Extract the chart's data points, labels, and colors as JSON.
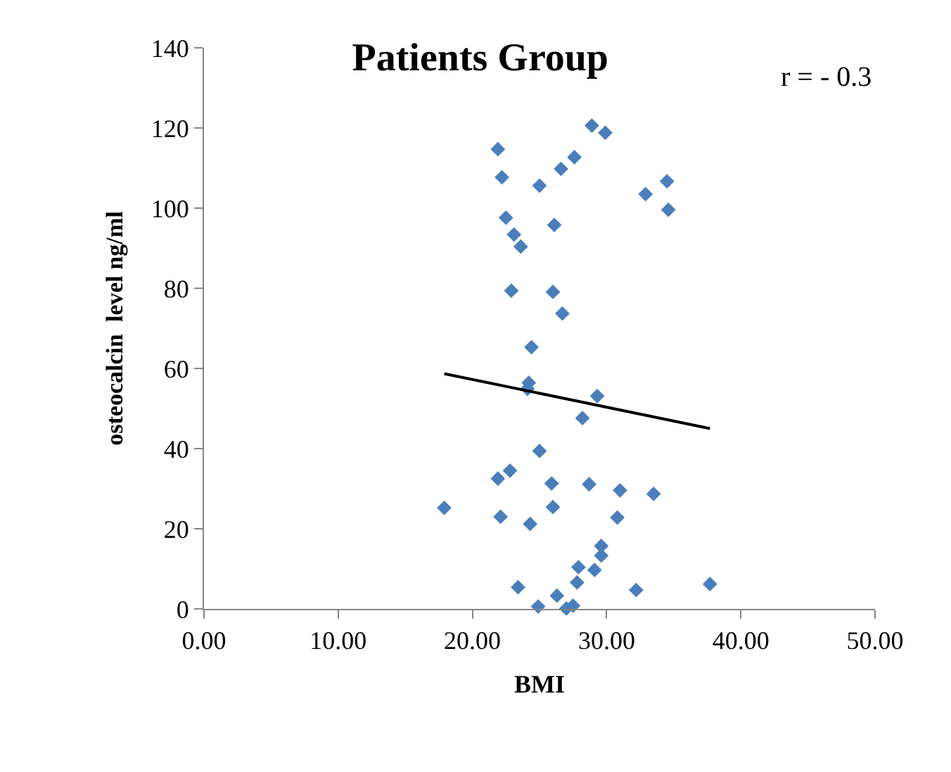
{
  "chart_data": {
    "type": "scatter",
    "title": "Patients Group",
    "xlabel": "BMI",
    "ylabel": "osteocalcin  level ng/ml",
    "annotations": [
      "r = - 0.3"
    ],
    "xlim": [
      0,
      50
    ],
    "xticks": [
      {
        "value": 0,
        "label": "0.00"
      },
      {
        "value": 10,
        "label": "10.00"
      },
      {
        "value": 20,
        "label": "20.00"
      },
      {
        "value": 30,
        "label": "30.00"
      },
      {
        "value": 40,
        "label": "40.00"
      },
      {
        "value": 50,
        "label": "50.00"
      }
    ],
    "ylim": [
      0,
      140
    ],
    "yticks": [
      0,
      20,
      40,
      60,
      80,
      100,
      120,
      140
    ],
    "marker": "diamond",
    "series": [
      {
        "color": "#4a7ebb",
        "x": [
          28.9,
          29.9,
          21.9,
          27.6,
          26.6,
          22.2,
          25.0,
          34.5,
          32.9,
          34.6,
          22.5,
          23.1,
          26.1,
          23.6,
          22.9,
          26.0,
          26.7,
          24.4,
          24.2,
          24.1,
          29.3,
          28.2,
          25.0,
          22.8,
          21.9,
          25.9,
          28.7,
          31.0,
          33.5,
          17.9,
          22.1,
          26.0,
          24.3,
          30.8,
          29.6,
          29.6,
          27.9,
          29.1,
          27.8,
          23.4,
          32.2,
          37.7,
          24.9,
          26.3,
          27.0,
          27.5
        ],
        "values": [
          120.6,
          118.8,
          114.7,
          112.7,
          109.8,
          107.7,
          105.6,
          106.7,
          103.5,
          99.6,
          97.6,
          93.4,
          95.8,
          90.4,
          79.4,
          79.1,
          73.7,
          65.3,
          56.4,
          54.9,
          53.1,
          47.6,
          39.4,
          34.5,
          32.5,
          31.3,
          31.1,
          29.6,
          28.7,
          25.2,
          23.0,
          25.4,
          21.2,
          22.8,
          15.7,
          13.3,
          10.4,
          9.7,
          6.6,
          5.4,
          4.7,
          6.2,
          0.6,
          3.3,
          0.1,
          0.8
        ]
      },
      {
        "type": "line",
        "color": "#000000",
        "marker": "none",
        "x": [
          17.9,
          37.7
        ],
        "values": [
          58.7,
          45.0
        ]
      }
    ]
  }
}
